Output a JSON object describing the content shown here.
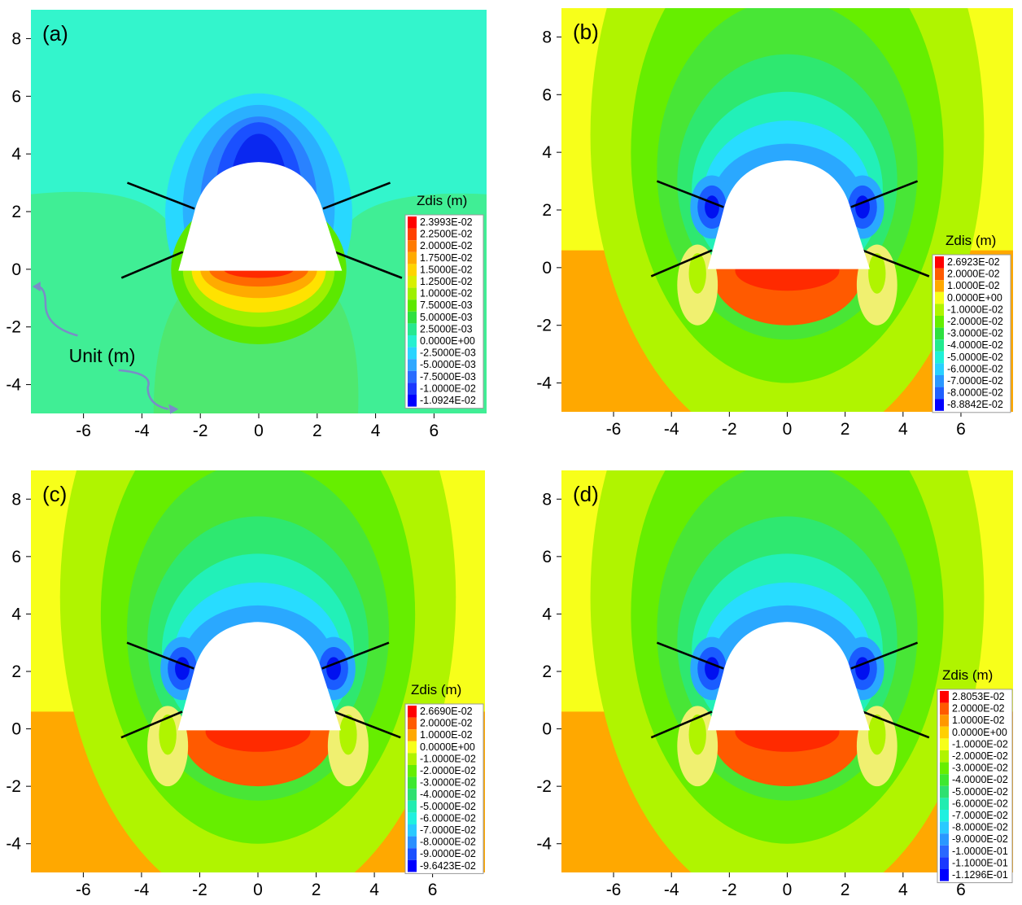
{
  "chart_data": [
    {
      "type": "heatmap",
      "panel_label": "(a)",
      "legend_title": "Zdis (m)",
      "x_ticks": [
        "-6",
        "-4",
        "-2",
        "0",
        "2",
        "4",
        "6"
      ],
      "y_ticks": [
        "8",
        "6",
        "4",
        "2",
        "0",
        "-2",
        "-4"
      ],
      "xlim": [
        -7.8,
        7.8
      ],
      "ylim": [
        -5.0,
        9.0
      ],
      "grid": false,
      "annotation": "Unit (m)",
      "legend_entries": [
        "2.3993E-02",
        "2.2500E-02",
        "2.0000E-02",
        "1.7500E-02",
        "1.5000E-02",
        "1.2500E-02",
        "1.0000E-02",
        "7.5000E-03",
        "5.0000E-03",
        "2.5000E-03",
        "0.0000E+00",
        "-2.5000E-03",
        "-5.0000E-03",
        "-7.5000E-03",
        "-1.0000E-02",
        "-1.0924E-02"
      ],
      "legend_colors": [
        "#ff0000",
        "#ff3f00",
        "#ff7a00",
        "#ffab00",
        "#ffd400",
        "#d8f000",
        "#9ef000",
        "#5ce800",
        "#2ee040",
        "#26e890",
        "#26f0d0",
        "#2ad4ff",
        "#2fa8ff",
        "#2a6cff",
        "#1c38ff",
        "#0000ff"
      ],
      "background": "#33f5cc",
      "lower_color": "#40ee95",
      "crown_colors": [
        "#28d8ff",
        "#2ab0ff",
        "#2a82ff",
        "#1a50ff",
        "#0a28f0"
      ],
      "floor_colors": [
        "#5ce800",
        "#9ef000",
        "#ffe200",
        "#ffab00",
        "#ff6a00",
        "#ff2a00"
      ]
    },
    {
      "type": "heatmap",
      "panel_label": "(b)",
      "legend_title": "Zdis (m)",
      "x_ticks": [
        "-6",
        "-4",
        "-2",
        "0",
        "2",
        "4",
        "6"
      ],
      "y_ticks": [
        "8",
        "6",
        "4",
        "2",
        "0",
        "-2",
        "-4"
      ],
      "xlim": [
        -7.8,
        7.8
      ],
      "ylim": [
        -5.0,
        9.0
      ],
      "grid": false,
      "legend_entries": [
        "2.6923E-02",
        "2.0000E-02",
        "1.0000E-02",
        "0.0000E+00",
        "-1.0000E-02",
        "-2.0000E-02",
        "-3.0000E-02",
        "-4.0000E-02",
        "-5.0000E-02",
        "-6.0000E-02",
        "-7.0000E-02",
        "-8.0000E-02",
        "-8.8842E-02"
      ],
      "legend_colors": [
        "#ff0000",
        "#ff5a00",
        "#ffa800",
        "#f7ff1a",
        "#b0f400",
        "#66ee00",
        "#2ee040",
        "#22ea90",
        "#20f0d8",
        "#2ad0ff",
        "#2a98ff",
        "#2060ff",
        "#0000ff"
      ],
      "upper_colors": [
        "#b0f400",
        "#66ee00",
        "#48e636",
        "#2ee870",
        "#22f0b8",
        "#28dcff",
        "#2aa8ff",
        "#1a5cff"
      ],
      "background": "#f7ff1a",
      "lower_color": "#ffa800",
      "floor_colors": [
        "#ff5a00",
        "#ff2a00"
      ]
    },
    {
      "type": "heatmap",
      "panel_label": "(c)",
      "legend_title": "Zdis (m)",
      "x_ticks": [
        "-6",
        "-4",
        "-2",
        "0",
        "2",
        "4",
        "6"
      ],
      "y_ticks": [
        "8",
        "6",
        "4",
        "2",
        "0",
        "-2",
        "-4"
      ],
      "xlim": [
        -7.8,
        7.8
      ],
      "ylim": [
        -5.0,
        9.0
      ],
      "grid": false,
      "legend_entries": [
        "2.6690E-02",
        "2.0000E-02",
        "1.0000E-02",
        "0.0000E+00",
        "-1.0000E-02",
        "-2.0000E-02",
        "-3.0000E-02",
        "-4.0000E-02",
        "-5.0000E-02",
        "-6.0000E-02",
        "-7.0000E-02",
        "-8.0000E-02",
        "-9.0000E-02",
        "-9.6423E-02"
      ],
      "legend_colors": [
        "#ff0000",
        "#ff5a00",
        "#ffa800",
        "#f7ff1a",
        "#b0f400",
        "#66ee00",
        "#3ee830",
        "#2ee070",
        "#22ecb0",
        "#20f0e0",
        "#2acaff",
        "#2a90ff",
        "#1a50ff",
        "#0000ff"
      ],
      "upper_colors": [
        "#b0f400",
        "#66ee00",
        "#48e636",
        "#2ee870",
        "#22f0b8",
        "#28dcff",
        "#2aa8ff",
        "#1a5cff"
      ],
      "background": "#f7ff1a",
      "lower_color": "#ffa800",
      "floor_colors": [
        "#ff5a00",
        "#ff2a00"
      ]
    },
    {
      "type": "heatmap",
      "panel_label": "(d)",
      "legend_title": "Zdis (m)",
      "x_ticks": [
        "-6",
        "-4",
        "-2",
        "0",
        "2",
        "4",
        "6"
      ],
      "y_ticks": [
        "8",
        "6",
        "4",
        "2",
        "0",
        "-2",
        "-4"
      ],
      "xlim": [
        -7.8,
        7.8
      ],
      "ylim": [
        -5.0,
        9.0
      ],
      "grid": false,
      "legend_entries": [
        "2.8053E-02",
        "2.0000E-02",
        "1.0000E-02",
        "0.0000E+00",
        "-1.0000E-02",
        "-2.0000E-02",
        "-3.0000E-02",
        "-4.0000E-02",
        "-5.0000E-02",
        "-6.0000E-02",
        "-7.0000E-02",
        "-8.0000E-02",
        "-9.0000E-02",
        "-1.0000E-01",
        "-1.1000E-01",
        "-1.1296E-01"
      ],
      "legend_colors": [
        "#ff0000",
        "#ff5a00",
        "#ff9800",
        "#ffd000",
        "#f7ff1a",
        "#b0f400",
        "#66ee00",
        "#3ee830",
        "#2ee070",
        "#22ecb0",
        "#20f0e0",
        "#2acaff",
        "#2a98ff",
        "#2a68ff",
        "#1a38ff",
        "#0000ff"
      ],
      "upper_colors": [
        "#b0f400",
        "#66ee00",
        "#48e636",
        "#2ee870",
        "#22f0b8",
        "#28dcff",
        "#2aa8ff",
        "#1a5cff"
      ],
      "background": "#f7ff1a",
      "lower_color": "#ffa800",
      "floor_colors": [
        "#ff5a00",
        "#ff2a00"
      ]
    }
  ]
}
